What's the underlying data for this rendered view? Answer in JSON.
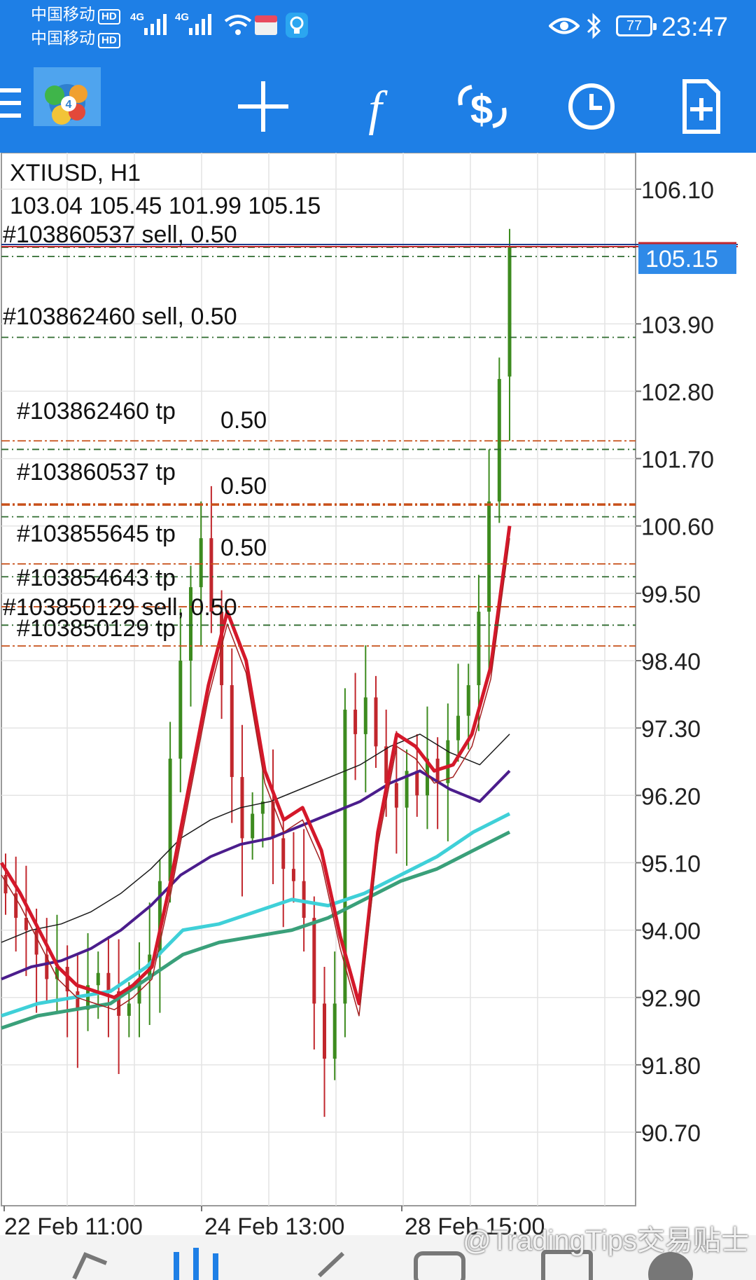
{
  "status_bar": {
    "carrier_1": "中国移动",
    "carrier_2": "中国移动",
    "hd_badge": "HD",
    "network_1": "4G",
    "network_2": "4G",
    "battery": "77",
    "time": "23:47"
  },
  "toolbar": {
    "icons": [
      "menu-icon",
      "metatrader-logo",
      "crosshair-icon",
      "indicators-icon",
      "trade-icon",
      "period-icon",
      "new-order-icon"
    ]
  },
  "chart": {
    "symbol_period": "XTIUSD, H1",
    "ohlc": "103.04 105.45 101.99 105.15",
    "current_price": "105.15",
    "price_labels": [
      "106.10",
      "103.90",
      "102.80",
      "101.70",
      "100.60",
      "99.50",
      "98.40",
      "97.30",
      "96.20",
      "95.10",
      "94.00",
      "92.90",
      "91.80",
      "90.70"
    ],
    "date_labels": [
      "22 Feb 11:00",
      "24 Feb 13:00",
      "28 Feb 15:00"
    ],
    "order_labels": [
      "#103860537 sell, 0.50",
      "#103862460 sell, 0.50",
      "#103862460 tp",
      "0.50",
      "#103860537 tp",
      "0.50",
      "#103855645 tp",
      "0.50",
      "#103854643 tp",
      "#103850129 sell, 0.50",
      "#103850129 tp"
    ],
    "colors": {
      "background": "#1e7fe6",
      "bull_candle": "#3d8b1f",
      "bear_candle": "#c1272d",
      "sell_line": "#2f6b2f",
      "tp_line": "#c8501a",
      "price_line": "#c1272d",
      "price_label_bg": "#2f8ae8"
    }
  },
  "chart_data": {
    "type": "candlestick",
    "title": "XTIUSD, H1",
    "ylim": [
      90.2,
      106.6
    ],
    "y_ticks": [
      106.1,
      103.9,
      102.8,
      101.7,
      100.6,
      99.5,
      98.4,
      97.3,
      96.2,
      95.1,
      94.0,
      92.9,
      91.8,
      90.7
    ],
    "x_ticks": [
      "22 Feb 11:00",
      "24 Feb 13:00",
      "28 Feb 15:00"
    ],
    "last_price": 105.15,
    "last_ohlc": {
      "open": 103.04,
      "high": 105.45,
      "low": 101.99,
      "close": 105.15
    },
    "order_levels": [
      {
        "label": "#103860537 sell, 0.50",
        "price": 105.15,
        "kind": "sell"
      },
      {
        "label": "",
        "price": 105.0,
        "kind": "sell"
      },
      {
        "label": "#103862460 sell, 0.50",
        "price": 103.68,
        "kind": "sell"
      },
      {
        "label": "#103862460 tp",
        "price": 101.99,
        "kind": "tp"
      },
      {
        "label": "",
        "price": 101.85,
        "kind": "sell"
      },
      {
        "label": "#103860537 tp",
        "price": 100.95,
        "kind": "tp"
      },
      {
        "label": "",
        "price": 100.75,
        "kind": "sell"
      },
      {
        "label": "#103855645 tp",
        "price": 99.98,
        "kind": "tp"
      },
      {
        "label": "",
        "price": 99.77,
        "kind": "sell"
      },
      {
        "label": "#103854643 tp",
        "price": 99.28,
        "kind": "tp"
      },
      {
        "label": "#103850129 sell, 0.50",
        "price": 98.98,
        "kind": "sell"
      },
      {
        "label": "#103850129 tp",
        "price": 98.64,
        "kind": "tp"
      }
    ],
    "close_series": [
      94.6,
      94.2,
      94.0,
      93.6,
      93.2,
      93.4,
      93.0,
      92.7,
      93.1,
      93.3,
      93.0,
      92.6,
      92.8,
      93.2,
      93.6,
      94.8,
      96.8,
      98.4,
      99.6,
      100.4,
      99.2,
      98.0,
      96.5,
      95.5,
      95.9,
      96.1,
      95.5,
      95.0,
      94.8,
      94.2,
      92.8,
      91.9,
      92.8,
      97.6,
      97.2,
      97.8,
      97.0,
      96.4,
      96.0,
      96.6,
      96.2,
      96.8,
      96.4,
      97.1,
      97.5,
      98.0,
      99.2,
      101.0,
      103.0,
      105.15
    ],
    "ma_fast": [
      95.1,
      94.6,
      94.0,
      93.4,
      93.1,
      93.0,
      92.9,
      93.1,
      93.4,
      94.8,
      96.4,
      98.0,
      99.2,
      98.4,
      96.6,
      95.8,
      96.0,
      95.3,
      93.9,
      92.8,
      95.6,
      97.2,
      97.0,
      96.6,
      96.7,
      97.2,
      98.3,
      100.6
    ],
    "ma_slow": [
      93.2,
      93.4,
      93.5,
      93.7,
      94.0,
      94.4,
      94.9,
      95.2,
      95.4,
      95.5,
      95.7,
      95.9,
      96.1,
      96.4,
      96.6,
      96.3,
      96.1,
      96.6
    ],
    "ma_cyan": [
      92.6,
      92.8,
      92.9,
      93.0,
      93.4,
      94.0,
      94.1,
      94.3,
      94.5,
      94.4,
      94.6,
      94.9,
      95.2,
      95.6,
      95.9
    ],
    "ma_green": [
      92.4,
      92.6,
      92.7,
      92.8,
      93.2,
      93.6,
      93.8,
      93.9,
      94.0,
      94.2,
      94.5,
      94.8,
      95.0,
      95.3,
      95.6
    ]
  }
}
